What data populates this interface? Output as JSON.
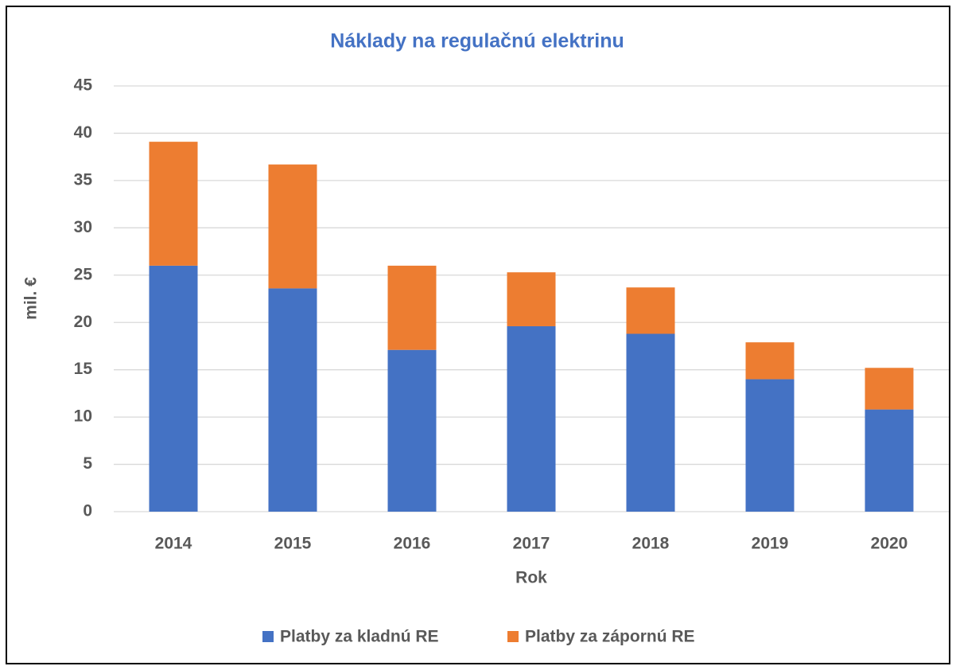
{
  "chart_data": {
    "type": "stacked_bar",
    "title": "Náklady na regulačnú elektrinu",
    "x_label": "Rok",
    "y_label": "mil. €",
    "categories": [
      "2014",
      "2015",
      "2016",
      "2017",
      "2018",
      "2019",
      "2020"
    ],
    "series": [
      {
        "name": "Platby za kladnú RE",
        "color": "#4472c4",
        "values": [
          26.0,
          23.6,
          17.1,
          19.6,
          18.8,
          14.0,
          10.8
        ]
      },
      {
        "name": "Platby za zápornú RE",
        "color": "#ed7d31",
        "values": [
          13.1,
          13.1,
          8.9,
          5.7,
          4.9,
          3.9,
          4.4
        ]
      }
    ],
    "ylim": [
      0,
      45
    ],
    "yticks": [
      0,
      5,
      10,
      15,
      20,
      25,
      30,
      35,
      40,
      45
    ],
    "grid": true,
    "legend": "bottom"
  }
}
